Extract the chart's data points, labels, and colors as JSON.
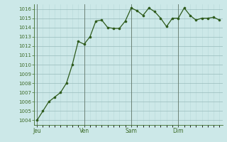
{
  "y_values": [
    1004,
    1005,
    1006,
    1006.5,
    1007,
    1008,
    1010,
    1012.5,
    1012.2,
    1013,
    1014.7,
    1014.8,
    1014,
    1013.9,
    1013.9,
    1014.7,
    1016.1,
    1015.8,
    1015.3,
    1016.1,
    1015.7,
    1015,
    1014.1,
    1015,
    1015,
    1016.1,
    1015.3,
    1014.8,
    1015,
    1015,
    1015.1,
    1014.8
  ],
  "day_labels": [
    "Jeu",
    "Ven",
    "Sam",
    "Dim"
  ],
  "day_positions": [
    0,
    8,
    16,
    24
  ],
  "ylim": [
    1003.5,
    1016.5
  ],
  "yticks": [
    1004,
    1005,
    1006,
    1007,
    1008,
    1009,
    1010,
    1011,
    1012,
    1013,
    1014,
    1015,
    1016
  ],
  "line_color": "#2d5a1b",
  "marker_color": "#2d5a1b",
  "bg_color": "#cce8e8",
  "spine_color": "#3d6b28",
  "separator_color": "#556655"
}
